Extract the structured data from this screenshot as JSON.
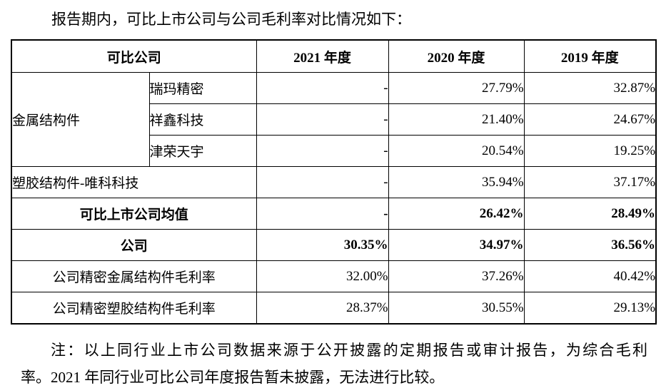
{
  "document": {
    "intro": "报告期内，可比上市公司与公司毛利率对比情况如下：",
    "note": {
      "line1": "注：以上同行业上市公司数据来源于公开披露的定期报告或审计报告，为综合毛利",
      "line2": "率。2021 年同行业可比公司年度报告暂未披露，无法进行比较。"
    }
  },
  "table": {
    "header": {
      "company": "可比公司",
      "y2021": "2021 年度",
      "y2020": "2020 年度",
      "y2019": "2019 年度"
    },
    "metal_group_label": "金属结构件",
    "rows": {
      "ruima": {
        "name": "瑞玛精密",
        "y2021": "-",
        "y2020": "27.79%",
        "y2019": "32.87%"
      },
      "xiangxin": {
        "name": "祥鑫科技",
        "y2021": "-",
        "y2020": "21.40%",
        "y2019": "24.67%"
      },
      "jinrong": {
        "name": "津荣天宇",
        "y2021": "-",
        "y2020": "20.54%",
        "y2019": "19.25%"
      },
      "plastic_weike": {
        "name": "塑胶结构件-唯科科技",
        "y2021": "-",
        "y2020": "35.94%",
        "y2019": "37.17%"
      },
      "average": {
        "name": "可比上市公司均值",
        "y2021": "-",
        "y2020": "26.42%",
        "y2019": "28.49%"
      },
      "company": {
        "name": "公司",
        "y2021": "30.35%",
        "y2020": "34.97%",
        "y2019": "36.56%"
      },
      "company_metal": {
        "name": "公司精密金属结构件毛利率",
        "y2021": "32.00%",
        "y2020": "37.26%",
        "y2019": "40.42%"
      },
      "company_plastic": {
        "name": "公司精密塑胶结构件毛利率",
        "y2021": "28.37%",
        "y2020": "30.55%",
        "y2019": "29.13%"
      }
    }
  },
  "colors": {
    "text": "#000000",
    "border": "#000000",
    "background": "#ffffff"
  }
}
